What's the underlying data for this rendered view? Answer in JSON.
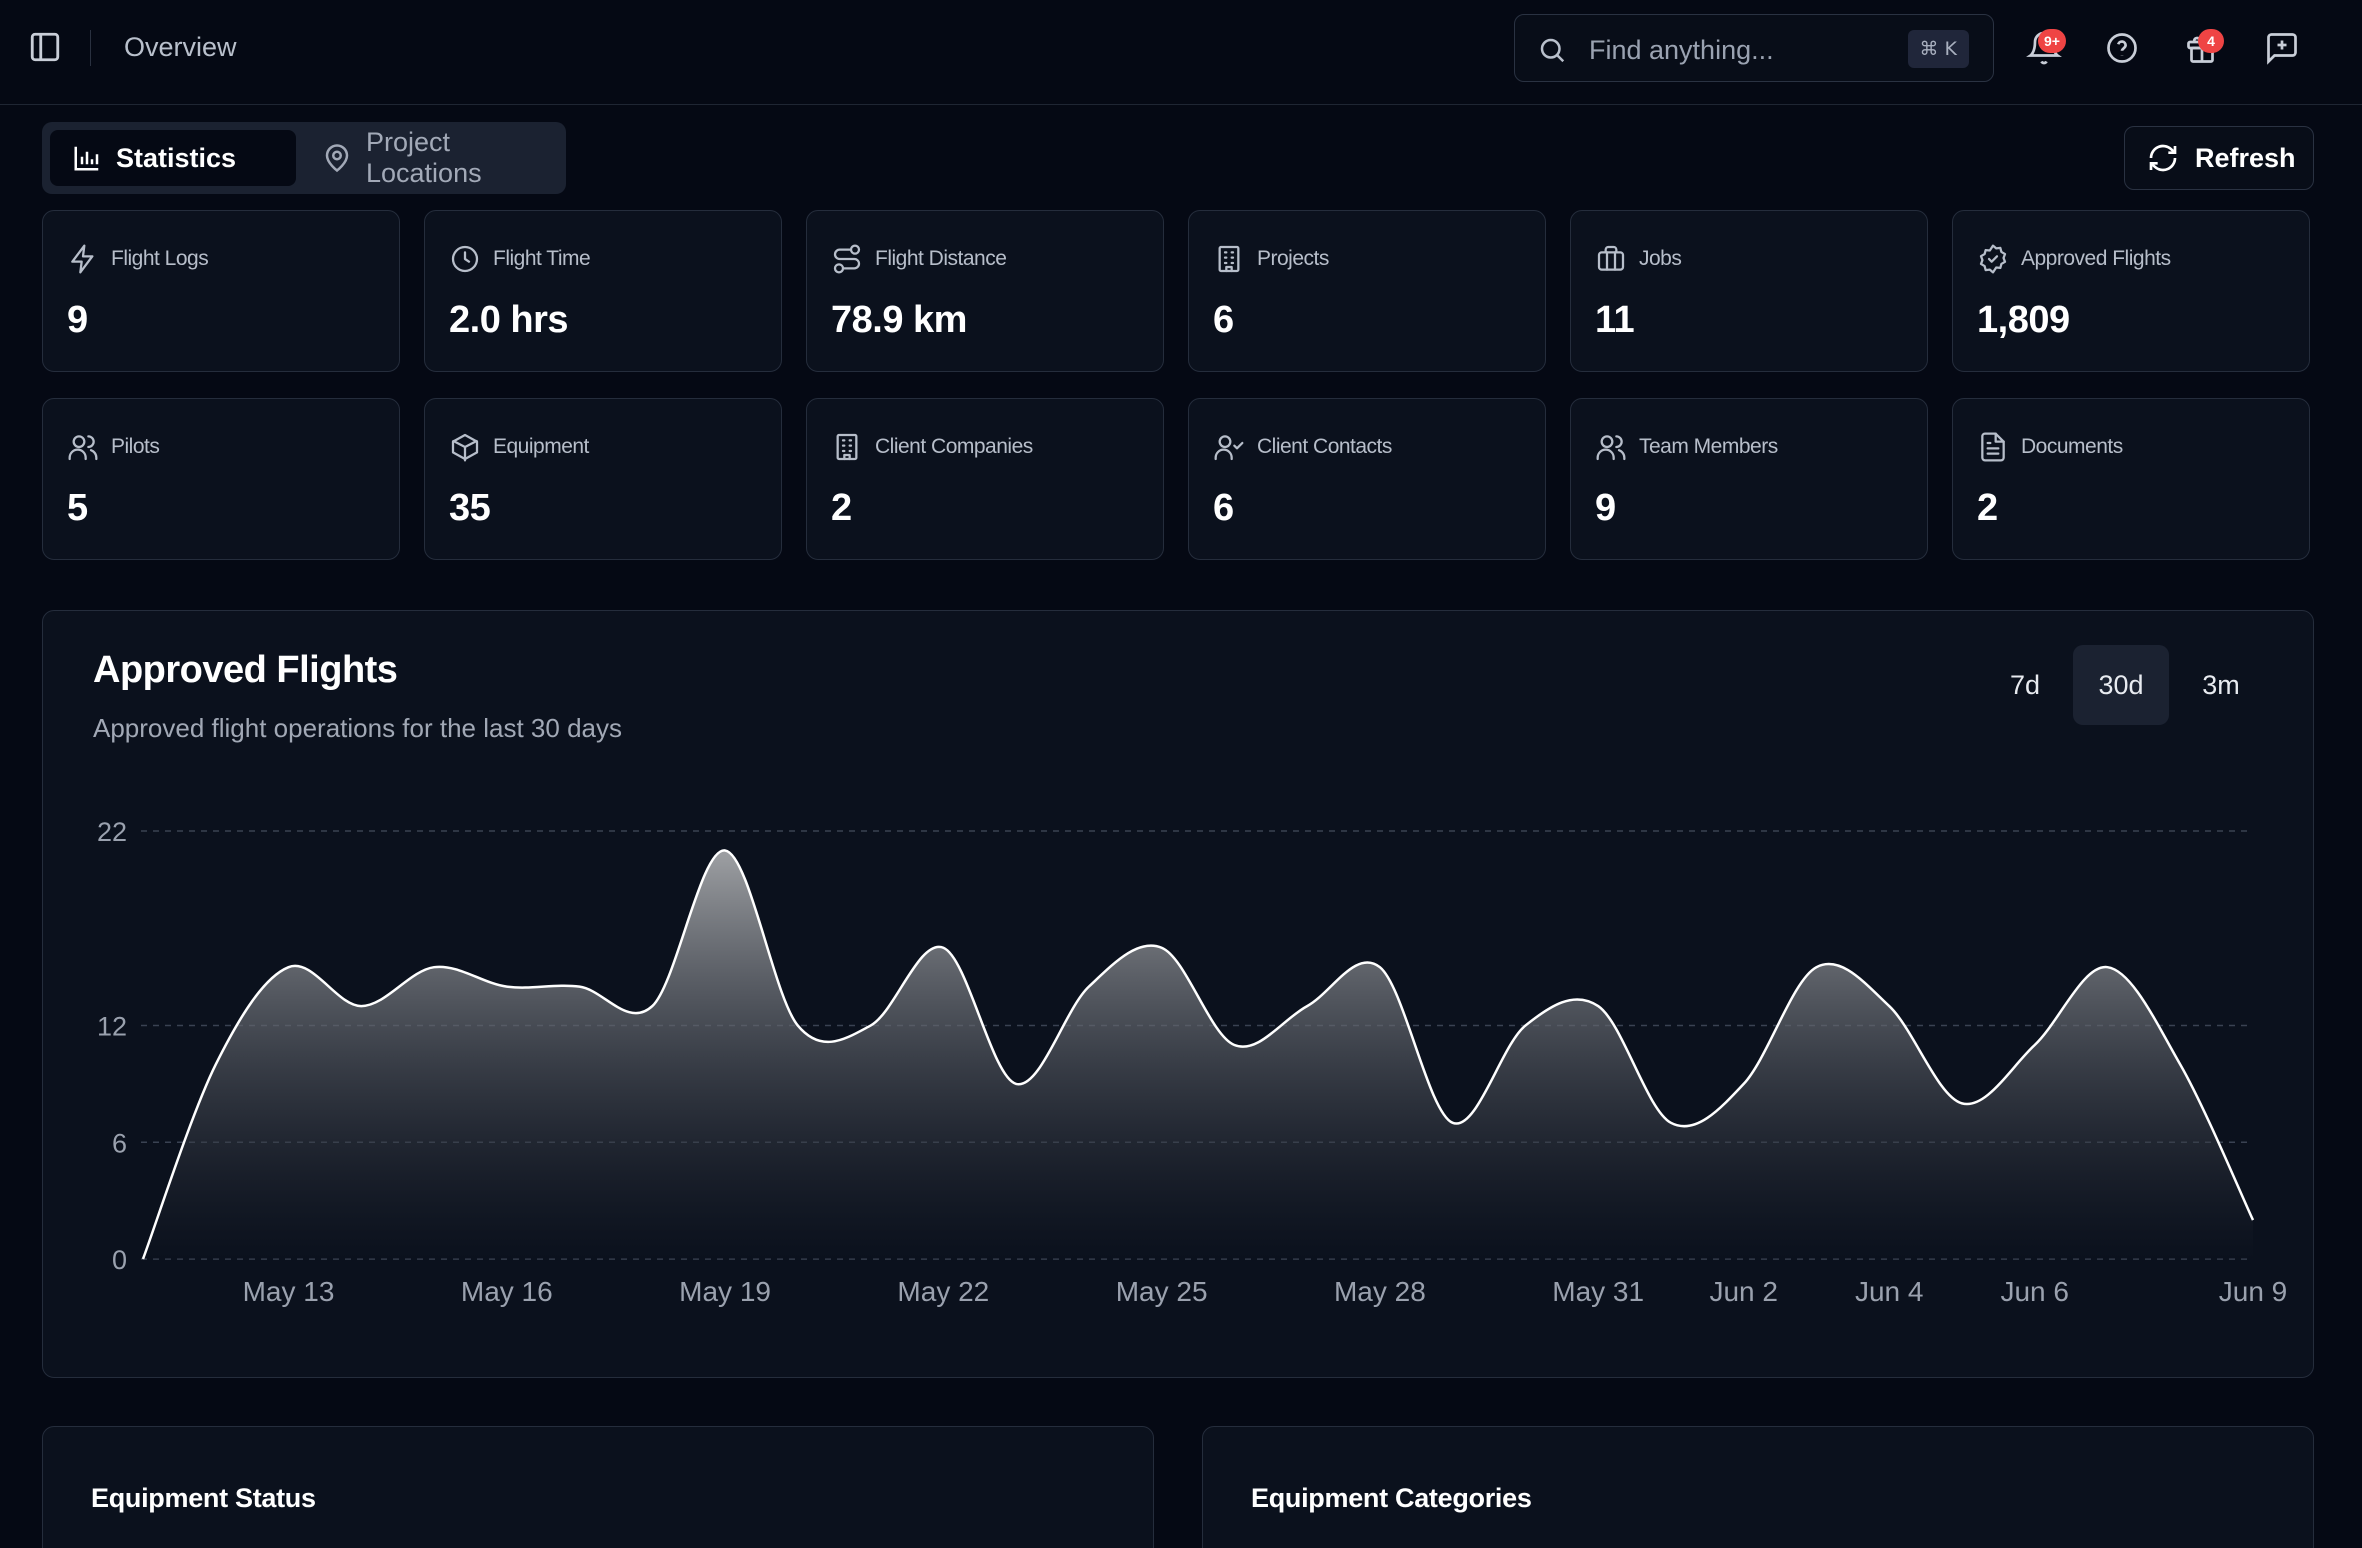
{
  "header": {
    "page_title": "Overview",
    "search_placeholder": "Find anything...",
    "search_shortcut": "⌘ K",
    "notifications_badge": "9+",
    "gifts_badge": "4",
    "icons": [
      "sidebar-toggle-icon",
      "search-icon",
      "bell-icon",
      "help-icon",
      "gift-icon",
      "feedback-icon"
    ]
  },
  "tabs": [
    {
      "label": "Statistics",
      "icon": "bar-chart-icon",
      "active": true
    },
    {
      "label": "Project Locations",
      "icon": "map-pin-icon",
      "active": false
    }
  ],
  "refresh_label": "Refresh",
  "stats": [
    {
      "label": "Flight Logs",
      "value": "9",
      "icon": "zap-icon"
    },
    {
      "label": "Flight Time",
      "value": "2.0 hrs",
      "icon": "clock-icon"
    },
    {
      "label": "Flight Distance",
      "value": "78.9 km",
      "icon": "route-icon"
    },
    {
      "label": "Projects",
      "value": "6",
      "icon": "building-icon"
    },
    {
      "label": "Jobs",
      "value": "11",
      "icon": "briefcase-icon"
    },
    {
      "label": "Approved Flights",
      "value": "1,809",
      "icon": "badge-check-icon"
    },
    {
      "label": "Pilots",
      "value": "5",
      "icon": "users-icon"
    },
    {
      "label": "Equipment",
      "value": "35",
      "icon": "box-icon"
    },
    {
      "label": "Client Companies",
      "value": "2",
      "icon": "building-icon"
    },
    {
      "label": "Client Contacts",
      "value": "6",
      "icon": "user-check-icon"
    },
    {
      "label": "Team Members",
      "value": "9",
      "icon": "users-icon"
    },
    {
      "label": "Documents",
      "value": "2",
      "icon": "file-text-icon"
    }
  ],
  "chart": {
    "title": "Approved Flights",
    "subtitle": "Approved flight operations for the last 30 days",
    "ranges": [
      {
        "label": "7d",
        "active": false
      },
      {
        "label": "30d",
        "active": true
      },
      {
        "label": "3m",
        "active": false
      }
    ]
  },
  "chart_data": {
    "type": "area",
    "title": "Approved Flights",
    "xlabel": "",
    "ylabel": "",
    "yticks": [
      0,
      6,
      12,
      22
    ],
    "ylim": [
      0,
      22
    ],
    "grid": true,
    "x": [
      "May 11",
      "May 12",
      "May 13",
      "May 14",
      "May 15",
      "May 16",
      "May 17",
      "May 18",
      "May 19",
      "May 20",
      "May 21",
      "May 22",
      "May 23",
      "May 24",
      "May 25",
      "May 26",
      "May 27",
      "May 28",
      "May 29",
      "May 30",
      "May 31",
      "Jun 1",
      "Jun 2",
      "Jun 3",
      "Jun 4",
      "Jun 5",
      "Jun 6",
      "Jun 7",
      "Jun 8",
      "Jun 9"
    ],
    "values": [
      0,
      10,
      15,
      13,
      15,
      14,
      14,
      13,
      21,
      12,
      12,
      16,
      9,
      14,
      16,
      11,
      13,
      15,
      7,
      12,
      13,
      7,
      9,
      15,
      13,
      8,
      11,
      15,
      10,
      2
    ],
    "xtick_labels": [
      "May 13",
      "May 16",
      "May 19",
      "May 22",
      "May 25",
      "May 28",
      "May 31",
      "Jun 2",
      "Jun 4",
      "Jun 6",
      "Jun 9"
    ],
    "series": [
      {
        "values_ref": "values"
      }
    ]
  },
  "bottom_panels": [
    {
      "title": "Equipment Status"
    },
    {
      "title": "Equipment Categories"
    }
  ]
}
